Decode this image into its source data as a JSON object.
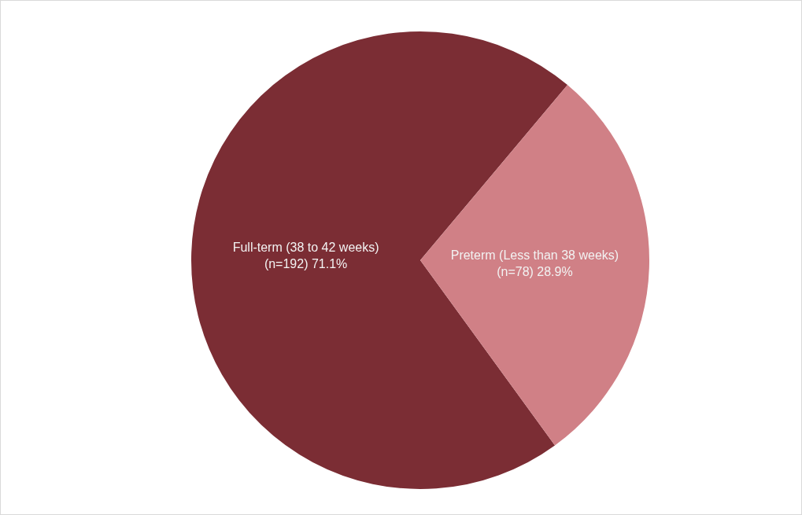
{
  "chart_data": {
    "type": "pie",
    "categories": [
      "Full-term (38 to 42 weeks)",
      "Preterm (Less than 38 weeks)"
    ],
    "values": [
      192,
      78
    ],
    "colors": [
      "#7b2d34",
      "#d08086"
    ],
    "value_labels": [
      "(n=192) 71.1%",
      "(n=78) 28.9%"
    ]
  }
}
